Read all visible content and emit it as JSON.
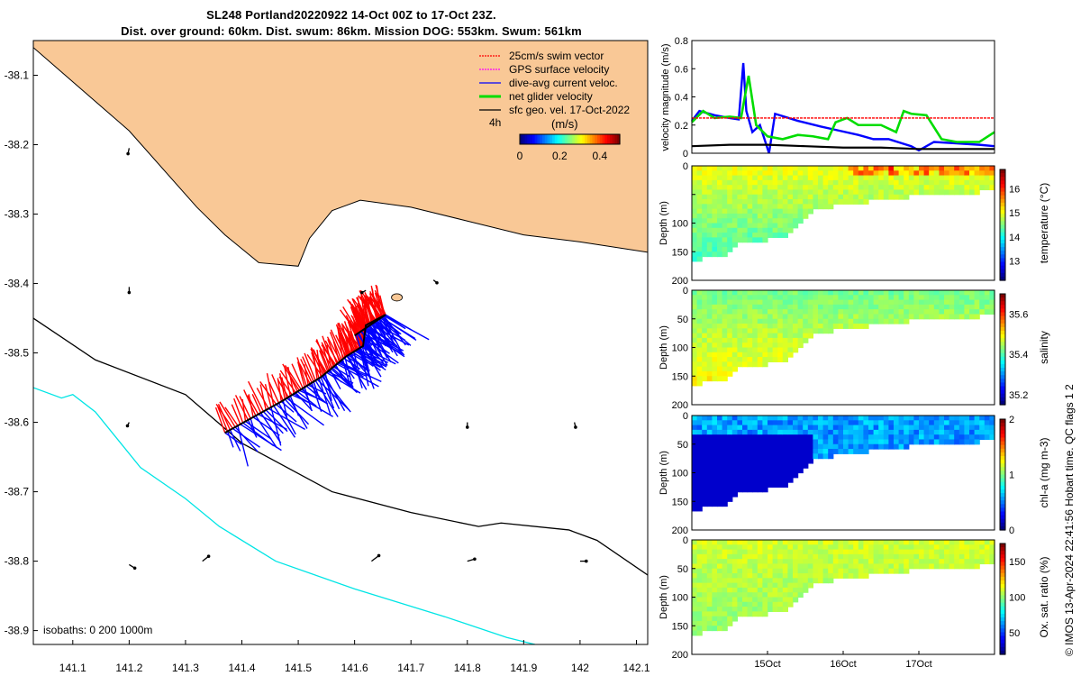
{
  "title_line1": "SL248 Portland20220922 14-Oct 00Z to 17-Oct 23Z.",
  "title_line2": "Dist. over ground: 60km. Dist. swum: 86km. Mission DOG: 553km. Swum: 561km",
  "credit": "© IMOS 13-Apr-2024 22:41:56 Hobart time. QC flags 1  2",
  "colors": {
    "land": "#F9C896",
    "swim": "#FF0000",
    "gps": "#FF00FF",
    "dac": "#0000FF",
    "net": "#00DD00",
    "sfc": "#000000",
    "isobath_deep": "#00E5E5"
  },
  "chart_data": [
    {
      "type": "scatter",
      "name_key": "map",
      "xlim": [
        141.03,
        142.12
      ],
      "ylim": [
        -38.92,
        -38.05
      ],
      "x_ticks": [
        141.1,
        141.2,
        141.3,
        141.4,
        141.5,
        141.6,
        141.7,
        141.8,
        141.9,
        142,
        142.1
      ],
      "x_tick_labels": [
        "141.1",
        "141.2",
        "141.3",
        "141.4",
        "141.5",
        "141.6",
        "141.7",
        "141.8",
        "141.9",
        "142",
        "142.1"
      ],
      "y_ticks": [
        -38.1,
        -38.2,
        -38.3,
        -38.4,
        -38.5,
        -38.6,
        -38.7,
        -38.8,
        -38.9
      ],
      "y_tick_labels": [
        "-38.1",
        "-38.2",
        "-38.3",
        "-38.4",
        "-38.5",
        "-38.6",
        "-38.7",
        "-38.8",
        "-38.9"
      ],
      "legend": {
        "placement": "top-right",
        "entries": [
          "25cm/s swim vector",
          "GPS surface velocity",
          "dive-avg current veloc.",
          "net glider velocity",
          "sfc geo. vel. 17-Oct-2022"
        ],
        "time_label": "4h",
        "colorbar_label": "(m/s)",
        "colorbar_ticks": [
          "0",
          "0.2",
          "0.4"
        ],
        "colorbar_range": [
          0,
          0.5
        ]
      },
      "isobath_label": "isobaths: 0   200  1000m",
      "coastline": [
        [
          141.03,
          -38.06
        ],
        [
          141.2,
          -38.18
        ],
        [
          141.32,
          -38.29
        ],
        [
          141.37,
          -38.33
        ],
        [
          141.43,
          -38.37
        ],
        [
          141.5,
          -38.375
        ],
        [
          141.52,
          -38.335
        ],
        [
          141.56,
          -38.295
        ],
        [
          141.61,
          -38.28
        ],
        [
          141.7,
          -38.29
        ],
        [
          141.8,
          -38.31
        ],
        [
          141.9,
          -38.33
        ],
        [
          142.0,
          -38.34
        ],
        [
          142.12,
          -38.355
        ]
      ],
      "isobath_200": [
        [
          141.03,
          -38.45
        ],
        [
          141.14,
          -38.51
        ],
        [
          141.3,
          -38.56
        ],
        [
          141.4,
          -38.63
        ],
        [
          141.56,
          -38.7
        ],
        [
          141.7,
          -38.73
        ],
        [
          141.82,
          -38.75
        ],
        [
          141.86,
          -38.745
        ],
        [
          141.98,
          -38.755
        ],
        [
          142.03,
          -38.77
        ],
        [
          142.12,
          -38.82
        ]
      ],
      "isobath_1000": [
        [
          141.03,
          -38.55
        ],
        [
          141.08,
          -38.565
        ],
        [
          141.1,
          -38.56
        ],
        [
          141.14,
          -38.585
        ],
        [
          141.22,
          -38.665
        ],
        [
          141.3,
          -38.71
        ],
        [
          141.36,
          -38.75
        ],
        [
          141.46,
          -38.8
        ],
        [
          141.6,
          -38.84
        ],
        [
          141.76,
          -38.88
        ],
        [
          141.87,
          -38.91
        ],
        [
          141.92,
          -38.92
        ]
      ],
      "glider_track": [
        [
          141.37,
          -38.615
        ],
        [
          141.47,
          -38.57
        ],
        [
          141.54,
          -38.535
        ],
        [
          141.585,
          -38.505
        ],
        [
          141.615,
          -38.49
        ],
        [
          141.62,
          -38.46
        ],
        [
          141.655,
          -38.445
        ],
        [
          141.6,
          -38.475
        ]
      ],
      "geo_vectors": [
        [
          141.2,
          -38.205,
          -0.002,
          -0.008
        ],
        [
          141.2,
          -38.405,
          0.0,
          -0.008
        ],
        [
          141.74,
          -38.395,
          0.006,
          -0.004
        ],
        [
          141.62,
          -38.41,
          -0.007,
          -0.003
        ],
        [
          141.2,
          -38.6,
          -0.003,
          -0.005
        ],
        [
          141.8,
          -38.6,
          0.0,
          -0.007
        ],
        [
          141.99,
          -38.6,
          0.002,
          -0.007
        ],
        [
          141.2,
          -38.805,
          0.01,
          -0.005
        ],
        [
          141.33,
          -38.8,
          0.011,
          0.007
        ],
        [
          141.63,
          -38.8,
          0.013,
          0.008
        ],
        [
          141.8,
          -38.8,
          0.013,
          0.003
        ],
        [
          142.0,
          -38.8,
          0.011,
          0.0
        ]
      ]
    },
    {
      "type": "line",
      "name_key": "velocity",
      "ylabel": "velocity magnitude (m/s)",
      "xlim": [
        14.0,
        18.0
      ],
      "ylim": [
        0,
        0.8
      ],
      "y_ticks": [
        0,
        0.2,
        0.4,
        0.6,
        0.8
      ],
      "y_tick_labels": [
        "0",
        "0.2",
        "0.4",
        "0.6",
        "0.8"
      ],
      "series": [
        {
          "key": "dac",
          "x": [
            14.0,
            14.1,
            14.3,
            14.5,
            14.62,
            14.68,
            14.72,
            14.8,
            14.9,
            15.02,
            15.1,
            15.4,
            15.7,
            15.95,
            16.2,
            16.4,
            16.6,
            16.9,
            17.0,
            17.2,
            17.5,
            17.8,
            18.0
          ],
          "values": [
            0.23,
            0.3,
            0.27,
            0.25,
            0.24,
            0.64,
            0.3,
            0.15,
            0.2,
            0.0,
            0.28,
            0.23,
            0.19,
            0.16,
            0.13,
            0.1,
            0.1,
            0.05,
            0.02,
            0.08,
            0.07,
            0.06,
            0.05
          ]
        },
        {
          "key": "net",
          "x": [
            14.0,
            14.15,
            14.3,
            14.5,
            14.65,
            14.75,
            14.85,
            15.0,
            15.2,
            15.4,
            15.6,
            15.8,
            15.9,
            16.05,
            16.2,
            16.5,
            16.7,
            16.8,
            16.9,
            17.1,
            17.3,
            17.5,
            17.8,
            18.0
          ],
          "values": [
            0.22,
            0.3,
            0.25,
            0.26,
            0.25,
            0.55,
            0.2,
            0.12,
            0.1,
            0.13,
            0.12,
            0.1,
            0.22,
            0.25,
            0.2,
            0.2,
            0.15,
            0.3,
            0.28,
            0.27,
            0.1,
            0.08,
            0.08,
            0.15
          ]
        },
        {
          "key": "swim",
          "x": [
            14.0,
            18.0
          ],
          "values": [
            0.25,
            0.25
          ]
        },
        {
          "key": "sfc",
          "x": [
            14.0,
            14.5,
            15.0,
            15.5,
            16.0,
            16.5,
            17.0,
            17.5,
            18.0
          ],
          "values": [
            0.05,
            0.06,
            0.06,
            0.05,
            0.04,
            0.04,
            0.03,
            0.03,
            0.03
          ]
        }
      ]
    },
    {
      "type": "heatmap",
      "name_key": "temperature",
      "ylabel": "Depth (m)",
      "colorbar_label": "temperature (°C)",
      "colorbar_ticks": [
        13,
        14,
        15,
        16
      ],
      "colorbar_tick_labels": [
        "13",
        "14",
        "15",
        "16"
      ],
      "clim": [
        12.2,
        16.8
      ],
      "ylim": [
        0,
        200
      ],
      "y_ticks": [
        0,
        50,
        100,
        150,
        200
      ],
      "y_tick_labels": [
        "0",
        "",
        "100",
        "150",
        "200"
      ],
      "field": {
        "surface": 15.0,
        "deep": 14.2
      }
    },
    {
      "type": "heatmap",
      "name_key": "salinity",
      "ylabel": "Depth (m)",
      "colorbar_label": "salinity",
      "colorbar_ticks": [
        35.2,
        35.4,
        35.6
      ],
      "colorbar_tick_labels": [
        "35.2",
        "35.4",
        "35.6"
      ],
      "clim": [
        35.15,
        35.7
      ],
      "ylim": [
        0,
        200
      ],
      "y_ticks": [
        0,
        50,
        100,
        150,
        200
      ],
      "y_tick_labels": [
        "0",
        "50",
        "100",
        "150",
        "200"
      ],
      "field": {
        "surface": 35.42,
        "deep": 35.5
      }
    },
    {
      "type": "heatmap",
      "name_key": "chla",
      "ylabel": "Depth (m)",
      "colorbar_label": "chl-a (mg m-3)",
      "colorbar_ticks": [
        0,
        1,
        2
      ],
      "colorbar_tick_labels": [
        "0",
        "1",
        "2"
      ],
      "clim": [
        0,
        2
      ],
      "ylim": [
        0,
        200
      ],
      "y_ticks": [
        0,
        50,
        100,
        150,
        200
      ],
      "y_tick_labels": [
        "0",
        "50",
        "100",
        "150",
        "200"
      ],
      "field": {
        "surface": 0.5,
        "deep": 0.25
      }
    },
    {
      "type": "heatmap",
      "name_key": "oxygen",
      "ylabel": "Depth (m)",
      "colorbar_label": "Ox. sat. ratio (%)",
      "colorbar_ticks": [
        50,
        100,
        150
      ],
      "colorbar_tick_labels": [
        "50",
        "100",
        "150"
      ],
      "clim": [
        20,
        175
      ],
      "ylim": [
        0,
        200
      ],
      "y_ticks": [
        0,
        50,
        100,
        150,
        200
      ],
      "y_tick_labels": [
        "0",
        "50",
        "100",
        "150",
        "200"
      ],
      "x_ticks": [
        15,
        16,
        17
      ],
      "x_tick_labels": [
        "15Oct",
        "16Oct",
        "17Oct"
      ],
      "field": {
        "surface": 110,
        "deep": 100
      }
    }
  ]
}
